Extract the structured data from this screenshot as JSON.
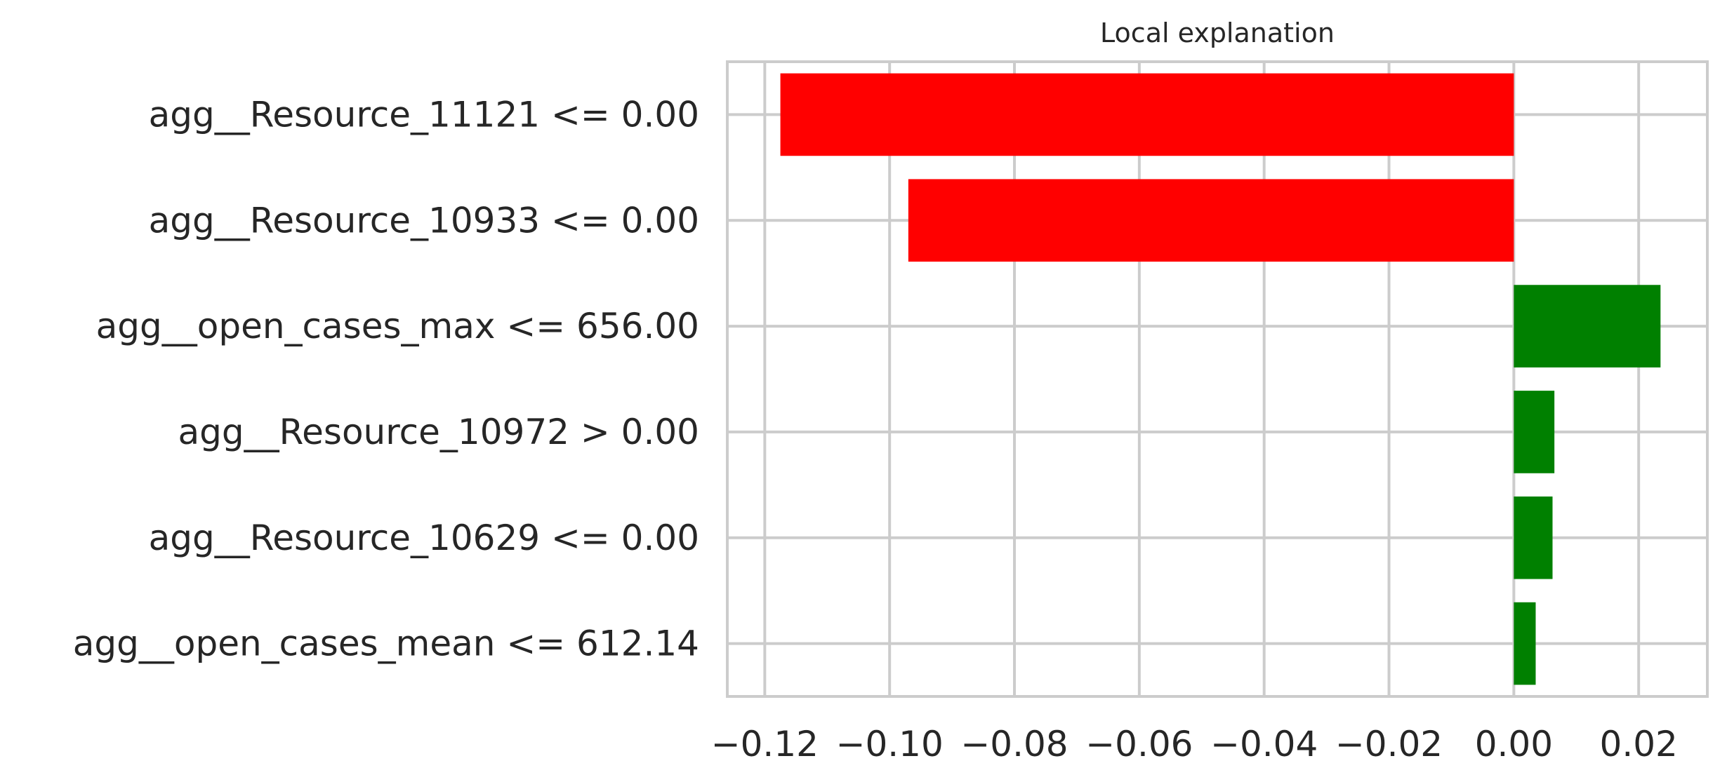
{
  "chart_data": {
    "type": "bar",
    "orientation": "horizontal",
    "title": "Local explanation",
    "xlabel": "",
    "ylabel": "",
    "categories": [
      "agg__Resource_11121 <= 0.00",
      "agg__Resource_10933 <= 0.00",
      "agg__open_cases_max <= 656.00",
      "agg__Resource_10972 > 0.00",
      "agg__Resource_10629 <= 0.00",
      "agg__open_cases_mean <= 612.14"
    ],
    "values": [
      -0.1175,
      -0.097,
      0.0235,
      0.0065,
      0.0062,
      0.0035
    ],
    "xlim": [
      -0.126,
      0.031
    ],
    "xticks": [
      -0.12,
      -0.1,
      -0.08,
      -0.06,
      -0.04,
      -0.02,
      0.0,
      0.02
    ],
    "xtick_labels": [
      "−0.12",
      "−0.10",
      "−0.08",
      "−0.06",
      "−0.04",
      "−0.02",
      "0.00",
      "0.02"
    ],
    "grid": true,
    "colors": {
      "negative": "#ff0000",
      "positive": "#008000"
    }
  }
}
